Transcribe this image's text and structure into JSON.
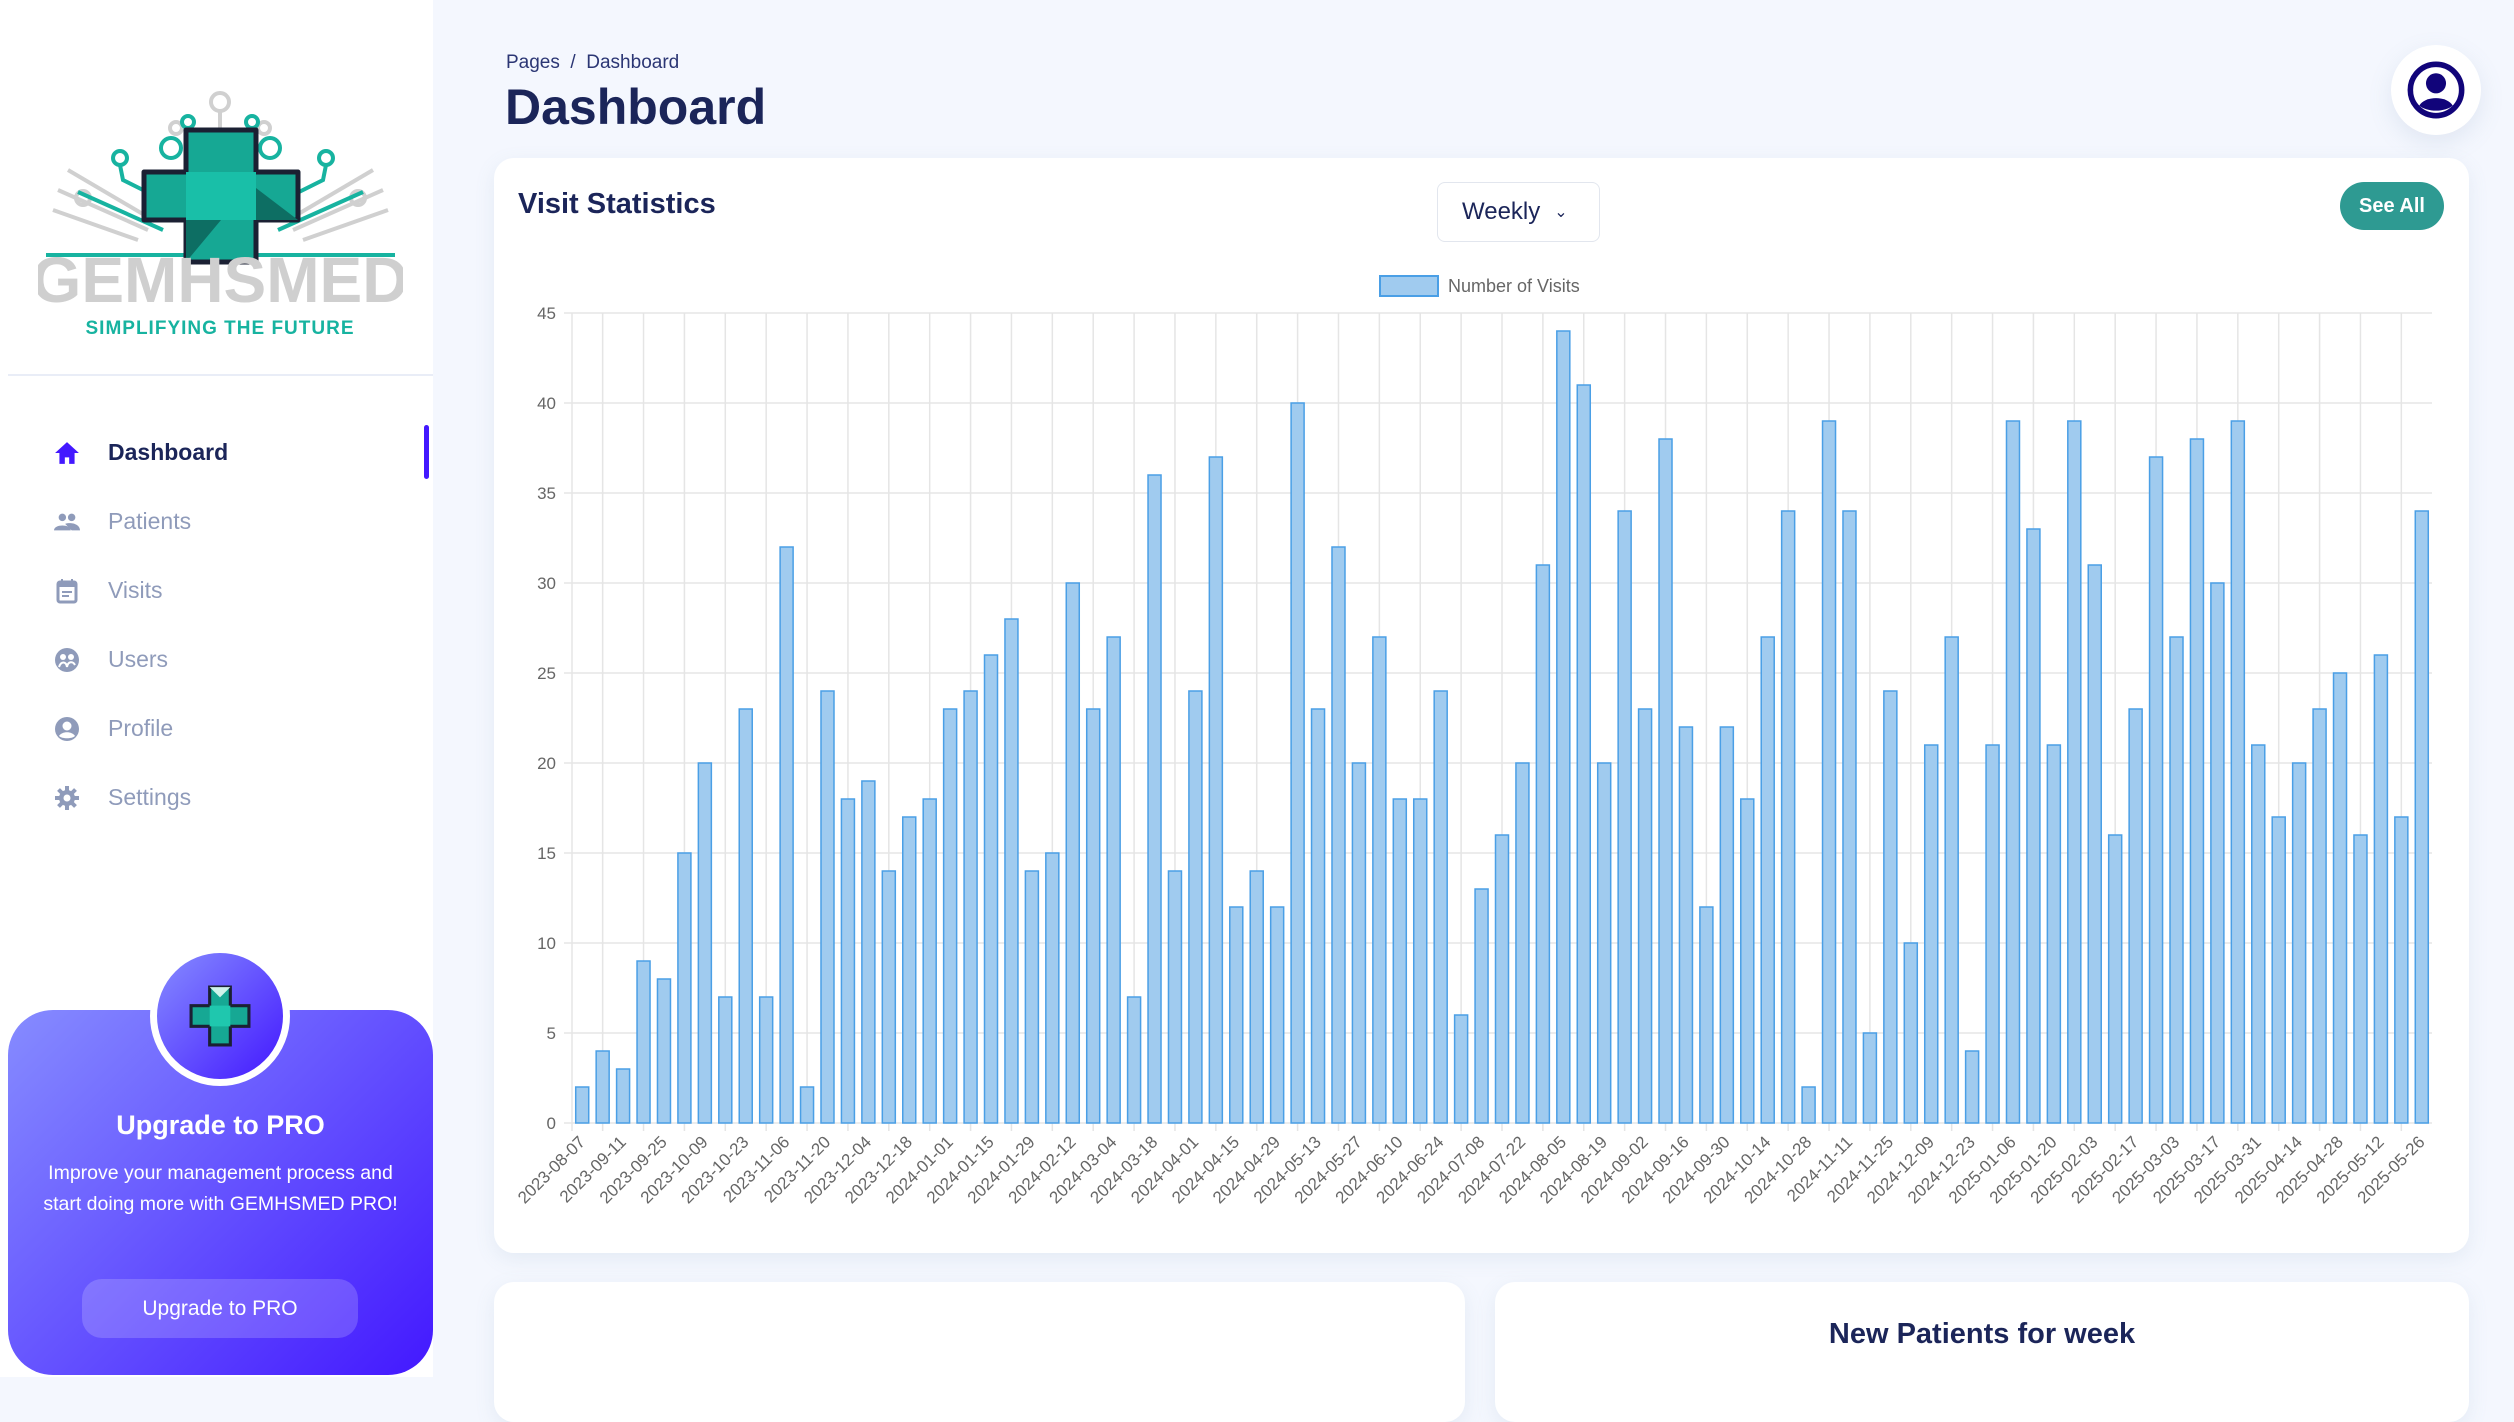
{
  "sidebar": {
    "logo": {
      "name": "GEMHSMED",
      "tagline": "SIMPLIFYING THE FUTURE"
    },
    "items": [
      {
        "label": "Dashboard",
        "icon": "home-icon",
        "active": true
      },
      {
        "label": "Patients",
        "icon": "people-icon"
      },
      {
        "label": "Visits",
        "icon": "calendar-icon"
      },
      {
        "label": "Users",
        "icon": "users-circle-icon"
      },
      {
        "label": "Profile",
        "icon": "account-circle-icon"
      },
      {
        "label": "Settings",
        "icon": "gear-icon"
      }
    ],
    "pro": {
      "title": "Upgrade to PRO",
      "text": "Improve your management process and start doing more with GEMHSMED PRO!",
      "button": "Upgrade to PRO"
    }
  },
  "header": {
    "breadcrumb": "Pages  /  Dashboard",
    "title": "Dashboard"
  },
  "visit_card": {
    "title": "Visit Statistics",
    "period": "Weekly",
    "see_all": "See All"
  },
  "new_patients": {
    "title": "New Patients for week"
  },
  "colors": {
    "accent": "#4318FF",
    "bar_fill": "#A0CBEF",
    "bar_border": "#4A9FE6",
    "see_all": "#2E9A92",
    "title": "#1B2559"
  },
  "chart_data": {
    "type": "bar",
    "legend": "Number of Visits",
    "legend_position": "top",
    "ylim": [
      0,
      45
    ],
    "yticks": [
      0,
      5,
      10,
      15,
      20,
      25,
      30,
      35,
      40,
      45
    ],
    "grid": true,
    "tick_labels": [
      "2023-08-07",
      "2023-09-11",
      "2023-09-25",
      "2023-10-09",
      "2023-10-23",
      "2023-11-06",
      "2023-11-20",
      "2023-12-04",
      "2023-12-18",
      "2024-01-01",
      "2024-01-15",
      "2024-01-29",
      "2024-02-12",
      "2024-03-04",
      "2024-03-18",
      "2024-04-01",
      "2024-04-15",
      "2024-04-29",
      "2024-05-13",
      "2024-05-27",
      "2024-06-10",
      "2024-06-24",
      "2024-07-08",
      "2024-07-22",
      "2024-08-05",
      "2024-08-19",
      "2024-09-02",
      "2024-09-16",
      "2024-09-30",
      "2024-10-14",
      "2024-10-28",
      "2024-11-11",
      "2024-11-25",
      "2024-12-09",
      "2024-12-23",
      "2025-01-06",
      "2025-01-20",
      "2025-02-03",
      "2025-02-17",
      "2025-03-03",
      "2025-03-17",
      "2025-03-31",
      "2025-04-14",
      "2025-04-28",
      "2025-05-12",
      "2025-05-26"
    ],
    "tick_every": 2,
    "values": [
      2,
      4,
      3,
      9,
      8,
      15,
      20,
      7,
      23,
      7,
      32,
      2,
      24,
      18,
      19,
      14,
      17,
      18,
      23,
      24,
      26,
      28,
      14,
      15,
      30,
      23,
      27,
      7,
      36,
      14,
      24,
      37,
      12,
      14,
      12,
      40,
      23,
      32,
      20,
      27,
      18,
      18,
      24,
      6,
      13,
      16,
      20,
      31,
      44,
      41,
      20,
      34,
      23,
      38,
      22,
      12,
      22,
      18,
      27,
      34,
      2,
      39,
      34,
      5,
      24,
      10,
      21,
      27,
      4,
      21,
      39,
      33,
      21,
      39,
      31,
      16,
      23,
      37,
      27,
      38,
      30,
      39,
      21,
      17,
      20,
      23,
      25,
      16,
      26,
      17,
      34
    ]
  }
}
